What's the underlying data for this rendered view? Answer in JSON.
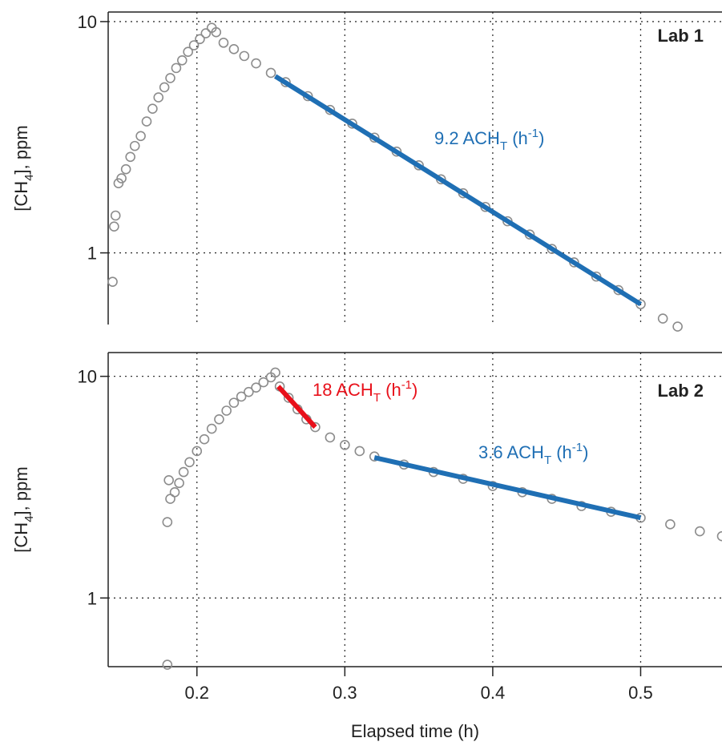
{
  "chart_data": [
    {
      "type": "scatter",
      "label": "Lab 1",
      "ylabel": [
        "[CH",
        "4",
        "], ppm"
      ],
      "yscale": "log",
      "grid": true,
      "xlim": [
        0.14,
        0.555
      ],
      "xticks": [
        0.2,
        0.3,
        0.4,
        0.5
      ],
      "ylim": [
        0.49,
        11
      ],
      "yticks": [
        1,
        10
      ],
      "points": {
        "color": "#8c8c8c",
        "x": [
          0.143,
          0.144,
          0.145,
          0.147,
          0.149,
          0.152,
          0.155,
          0.158,
          0.162,
          0.166,
          0.17,
          0.174,
          0.178,
          0.182,
          0.186,
          0.19,
          0.194,
          0.198,
          0.202,
          0.206,
          0.21,
          0.213,
          0.218,
          0.225,
          0.232,
          0.24,
          0.25,
          0.26,
          0.275,
          0.29,
          0.305,
          0.32,
          0.335,
          0.35,
          0.365,
          0.38,
          0.395,
          0.41,
          0.425,
          0.44,
          0.455,
          0.47,
          0.485,
          0.5,
          0.515,
          0.525
        ],
        "y": [
          0.75,
          1.3,
          1.45,
          2.0,
          2.1,
          2.3,
          2.6,
          2.9,
          3.2,
          3.7,
          4.2,
          4.7,
          5.2,
          5.7,
          6.3,
          6.8,
          7.4,
          7.9,
          8.4,
          8.9,
          9.4,
          9.0,
          8.1,
          7.6,
          7.1,
          6.6,
          6.0,
          5.47,
          4.76,
          4.15,
          3.62,
          3.15,
          2.74,
          2.39,
          2.08,
          1.81,
          1.58,
          1.37,
          1.2,
          1.04,
          0.91,
          0.79,
          0.69,
          0.6,
          0.52,
          0.48
        ]
      },
      "fits": [
        {
          "color": "#1f6fb4",
          "x": [
            0.253,
            0.5
          ],
          "y": [
            5.8,
            0.6
          ]
        }
      ],
      "annotations": [
        {
          "color": "#1f6fb4",
          "parts": [
            "9.2 ACH",
            "T",
            " (h",
            "-1",
            ")"
          ]
        }
      ]
    },
    {
      "type": "scatter",
      "label": "Lab 2",
      "ylabel": [
        "[CH",
        "4",
        "], ppm"
      ],
      "xlabel": "Elapsed time (h)",
      "yscale": "log",
      "grid": true,
      "xlim": [
        0.14,
        0.555
      ],
      "xticks": [
        0.2,
        0.3,
        0.4,
        0.5
      ],
      "ylim": [
        0.49,
        12.8
      ],
      "yticks": [
        1,
        10
      ],
      "points": {
        "color": "#8c8c8c",
        "x": [
          0.18,
          0.18,
          0.181,
          0.182,
          0.185,
          0.188,
          0.191,
          0.195,
          0.2,
          0.205,
          0.21,
          0.215,
          0.22,
          0.225,
          0.23,
          0.235,
          0.24,
          0.245,
          0.25,
          0.253,
          0.256,
          0.262,
          0.268,
          0.274,
          0.28,
          0.29,
          0.3,
          0.31,
          0.32,
          0.34,
          0.36,
          0.38,
          0.4,
          0.42,
          0.44,
          0.46,
          0.48,
          0.5,
          0.52,
          0.54,
          0.555
        ],
        "y": [
          0.5,
          2.2,
          3.4,
          2.8,
          3.0,
          3.3,
          3.7,
          4.1,
          4.6,
          5.2,
          5.8,
          6.4,
          7.0,
          7.6,
          8.1,
          8.5,
          8.9,
          9.4,
          9.9,
          10.4,
          9.0,
          8.0,
          7.1,
          6.4,
          5.9,
          5.3,
          4.9,
          4.6,
          4.35,
          4.0,
          3.7,
          3.45,
          3.2,
          3.0,
          2.8,
          2.6,
          2.45,
          2.3,
          2.15,
          2.0,
          1.9
        ]
      },
      "fits": [
        {
          "color": "#e8101a",
          "x": [
            0.255,
            0.28
          ],
          "y": [
            9.0,
            5.9
          ]
        },
        {
          "color": "#1f6fb4",
          "x": [
            0.32,
            0.5
          ],
          "y": [
            4.3,
            2.3
          ]
        }
      ],
      "annotations": [
        {
          "color": "#e8101a",
          "parts": [
            "18 ACH",
            "T",
            " (h",
            "-1",
            ")"
          ]
        },
        {
          "color": "#1f6fb4",
          "parts": [
            "3.6 ACH",
            "T",
            " (h",
            "-1",
            ")"
          ]
        }
      ]
    }
  ]
}
